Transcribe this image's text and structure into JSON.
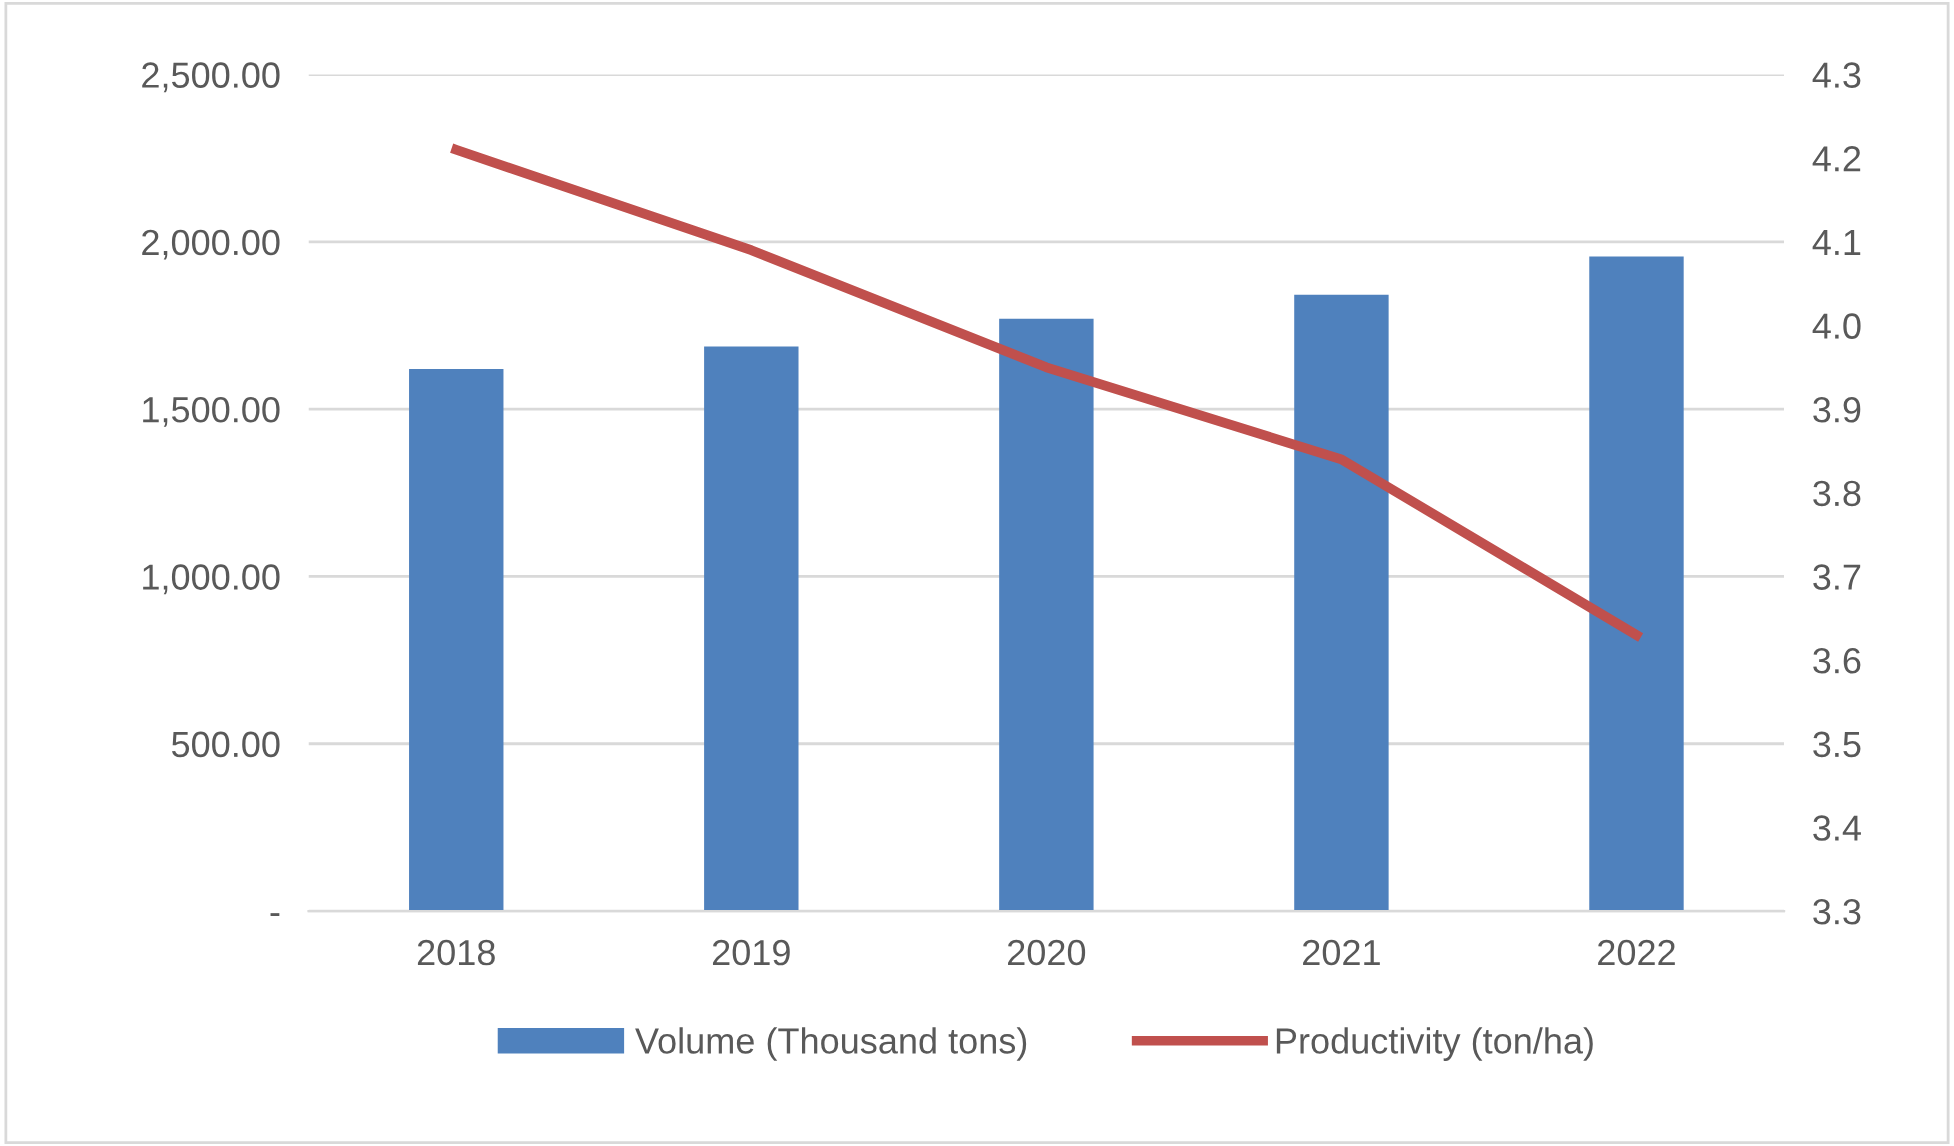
{
  "chart_data": {
    "type": "bar",
    "categories": [
      "2018",
      "2019",
      "2020",
      "2021",
      "2022"
    ],
    "series": [
      {
        "name": "Volume (Thousand tons)",
        "color": "#4f81bd",
        "values": [
          1620,
          1687,
          1770,
          1842,
          1956
        ]
      },
      {
        "name": "Productivity (ton/ha)",
        "type": "line",
        "axis": "y2",
        "color": "#c0504d",
        "values": [
          4.21,
          4.09,
          3.95,
          3.84,
          3.63
        ]
      }
    ],
    "ylim": [
      0,
      2500
    ],
    "yticks": [
      {
        "value": 0,
        "label": "-"
      },
      {
        "value": 500,
        "label": "500.00"
      },
      {
        "value": 1000,
        "label": "1,000.00"
      },
      {
        "value": 1500,
        "label": "1,500.00"
      },
      {
        "value": 2000,
        "label": "2,000.00"
      },
      {
        "value": 2500,
        "label": "2,500.00"
      }
    ],
    "y2lim": [
      3.3,
      4.3
    ],
    "y2ticks": [
      3.3,
      3.4,
      3.5,
      3.6,
      3.7,
      3.8,
      3.9,
      {
        "value": 4.0,
        "label": "4.0"
      },
      4.1,
      4.2,
      4.3
    ],
    "grid": "y",
    "legend": "bottom",
    "marker": "none",
    "line_style": "solid"
  }
}
